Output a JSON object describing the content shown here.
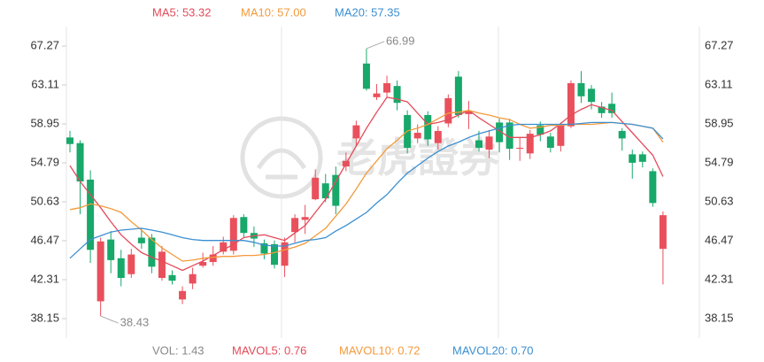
{
  "chart_data": {
    "type": "candlestick",
    "open": [
      57.5,
      56.9,
      53.0,
      40.0,
      46.6,
      44.6,
      42.9,
      46.8,
      46.8,
      42.5,
      42.8,
      40.2,
      41.9,
      43.8,
      44.2,
      45.3,
      45.4,
      49.0,
      47.3,
      46.2,
      46.1,
      43.8,
      47.4,
      48.7,
      50.9,
      52.6,
      53.5,
      54.4,
      57.4,
      65.4,
      61.8,
      62.3,
      63.0,
      59.9,
      57.4,
      59.9,
      56.9,
      59.0,
      64.0,
      60.0,
      57.2,
      56.2,
      59.1,
      59.1,
      56.3,
      55.8,
      58.8,
      57.6,
      56.6,
      58.7,
      63.3,
      62.7,
      60.8,
      61.1,
      58.2,
      55.7,
      55.7,
      53.9,
      45.6
    ],
    "high": [
      58.2,
      57.2,
      54.0,
      46.8,
      47.5,
      45.5,
      45.6,
      47.8,
      47.2,
      45.9,
      43.3,
      41.6,
      43.6,
      45.2,
      45.9,
      46.9,
      49.2,
      49.3,
      48.0,
      46.6,
      46.5,
      46.8,
      49.3,
      50.3,
      54.1,
      53.6,
      54.4,
      55.9,
      59.3,
      66.99,
      63.2,
      64.1,
      63.6,
      60.4,
      58.9,
      60.3,
      58.7,
      62.1,
      64.6,
      61.4,
      58.2,
      58.3,
      59.5,
      59.5,
      57.5,
      58.3,
      59.2,
      58.0,
      59.1,
      63.6,
      64.6,
      63.1,
      61.3,
      62.3,
      58.5,
      56.2,
      56.0,
      54.2,
      49.6
    ],
    "low": [
      55.9,
      49.3,
      44.1,
      38.43,
      43.0,
      41.6,
      42.5,
      45.6,
      43.0,
      42.2,
      41.8,
      39.7,
      41.3,
      43.6,
      43.8,
      45.0,
      45.0,
      46.8,
      45.8,
      44.5,
      43.5,
      42.6,
      46.3,
      47.2,
      50.8,
      50.6,
      49.3,
      53.9,
      56.5,
      62.5,
      61.5,
      61.8,
      60.4,
      55.8,
      56.9,
      56.6,
      56.2,
      58.6,
      59.6,
      58.4,
      56.0,
      55.3,
      55.9,
      55.1,
      55.0,
      55.2,
      57.1,
      55.9,
      56.0,
      58.5,
      61.2,
      60.5,
      59.6,
      59.6,
      56.1,
      53.1,
      54.3,
      50.1,
      41.8
    ],
    "close": [
      56.8,
      52.8,
      45.5,
      46.4,
      44.4,
      42.5,
      45.0,
      46.2,
      43.7,
      45.3,
      42.2,
      41.1,
      42.9,
      44.2,
      45.0,
      46.3,
      48.9,
      47.3,
      46.7,
      45.1,
      43.9,
      46.3,
      48.9,
      49.0,
      53.2,
      51.0,
      50.2,
      55.0,
      58.8,
      62.7,
      62.2,
      63.3,
      61.2,
      56.4,
      58.0,
      57.3,
      58.2,
      61.7,
      59.9,
      60.3,
      56.4,
      57.6,
      57.0,
      56.3,
      56.4,
      57.9,
      57.8,
      56.4,
      58.8,
      63.3,
      61.9,
      61.3,
      60.1,
      60.1,
      57.4,
      54.8,
      54.9,
      50.5,
      49.2
    ],
    "up_color": "#e9505c",
    "down_color": "#17a86a",
    "ylim": [
      36.07,
      69.35
    ],
    "yticks": [
      38.15,
      42.31,
      46.47,
      50.63,
      54.79,
      58.95,
      63.11,
      67.27
    ],
    "series": [
      {
        "name": "MA5: 53.32",
        "color": "#e34b5a",
        "values": [
          54.5,
          52.8,
          51.4,
          50.0,
          48.5,
          47.1,
          46.1,
          45.2,
          44.7,
          44.3,
          43.8,
          43.3,
          43.8,
          44.3,
          44.9,
          45.5,
          46.1,
          46.8,
          47.0,
          47.1,
          46.8,
          46.5,
          47.3,
          48.1,
          49.5,
          50.9,
          52.8,
          54.7,
          56.6,
          58.5,
          60.2,
          61.8,
          61.6,
          61.3,
          60.1,
          58.9,
          59.1,
          59.4,
          59.9,
          60.4,
          59.6,
          58.9,
          58.2,
          57.5,
          57.5,
          57.5,
          57.8,
          58.2,
          59.0,
          59.9,
          60.5,
          61.0,
          60.7,
          60.4,
          59.2,
          58.0,
          56.8,
          55.6,
          53.32
        ]
      },
      {
        "name": "MA10: 57.00",
        "color": "#f39a3c",
        "values": [
          49.8,
          50.0,
          50.4,
          50.2,
          49.9,
          49.5,
          48.5,
          47.6,
          46.6,
          45.7,
          45.0,
          44.3,
          44.4,
          44.6,
          44.7,
          44.8,
          44.8,
          44.9,
          44.9,
          45.0,
          45.2,
          45.5,
          45.8,
          46.2,
          47.0,
          47.8,
          49.1,
          50.4,
          52.0,
          53.7,
          55.0,
          56.3,
          57.2,
          58.2,
          58.5,
          58.9,
          59.5,
          60.1,
          60.2,
          60.4,
          60.1,
          59.9,
          59.6,
          59.4,
          58.9,
          58.5,
          58.6,
          58.8,
          58.8,
          58.9,
          58.9,
          58.9,
          59.0,
          59.1,
          59.0,
          58.9,
          58.7,
          58.5,
          57.0
        ]
      },
      {
        "name": "MA20: 57.35",
        "color": "#3b8fd0",
        "values": [
          44.6,
          45.6,
          46.6,
          47.0,
          47.4,
          47.6,
          47.7,
          47.8,
          47.6,
          47.4,
          47.1,
          46.8,
          46.6,
          46.5,
          46.5,
          46.5,
          46.5,
          46.5,
          46.3,
          46.0,
          45.9,
          45.9,
          46.2,
          46.5,
          46.6,
          46.8,
          47.5,
          48.1,
          48.8,
          49.5,
          50.5,
          51.4,
          52.6,
          53.7,
          54.5,
          55.3,
          56.0,
          56.6,
          57.0,
          57.5,
          57.9,
          58.2,
          58.5,
          58.8,
          58.9,
          58.9,
          58.9,
          58.9,
          58.9,
          58.9,
          59.0,
          59.1,
          59.1,
          59.1,
          59.0,
          58.9,
          58.7,
          58.5,
          57.35
        ]
      }
    ],
    "annotations": [
      66.99,
      38.43
    ],
    "watermark": "老虎證券",
    "volume_legend": [
      {
        "text": "VOL: 1.43",
        "color": "#888888"
      },
      {
        "text": "MAVOL5: 0.76",
        "color": "#e34b5a"
      },
      {
        "text": "MAVOL10: 0.72",
        "color": "#f39a3c"
      },
      {
        "text": "MAVOL20: 0.70",
        "color": "#3b8fd0"
      }
    ]
  }
}
